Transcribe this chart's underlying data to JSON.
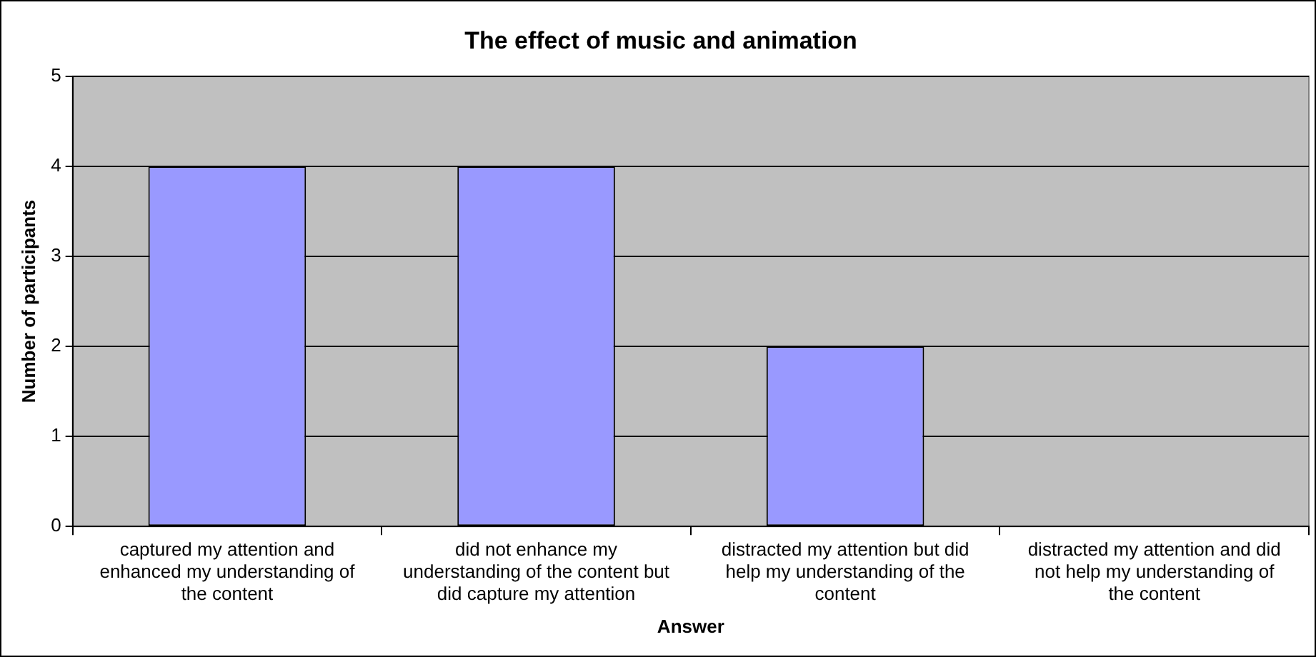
{
  "chart_data": {
    "type": "bar",
    "title": "The effect of music and animation",
    "xlabel": "Answer",
    "ylabel": "Number of participants",
    "categories": [
      "captured my attention and enhanced my understanding of the content",
      "did not enhance my understanding of the content but did capture my attention",
      "distracted my attention but did help my understanding of the content",
      "distracted my attention and did not help my understanding of the content"
    ],
    "values": [
      4,
      4,
      2,
      0
    ],
    "color": "#9999ff",
    "ylim": [
      0,
      5
    ],
    "yticks": [
      0,
      1,
      2,
      3,
      4,
      5
    ],
    "grid": "y",
    "legend": false
  }
}
